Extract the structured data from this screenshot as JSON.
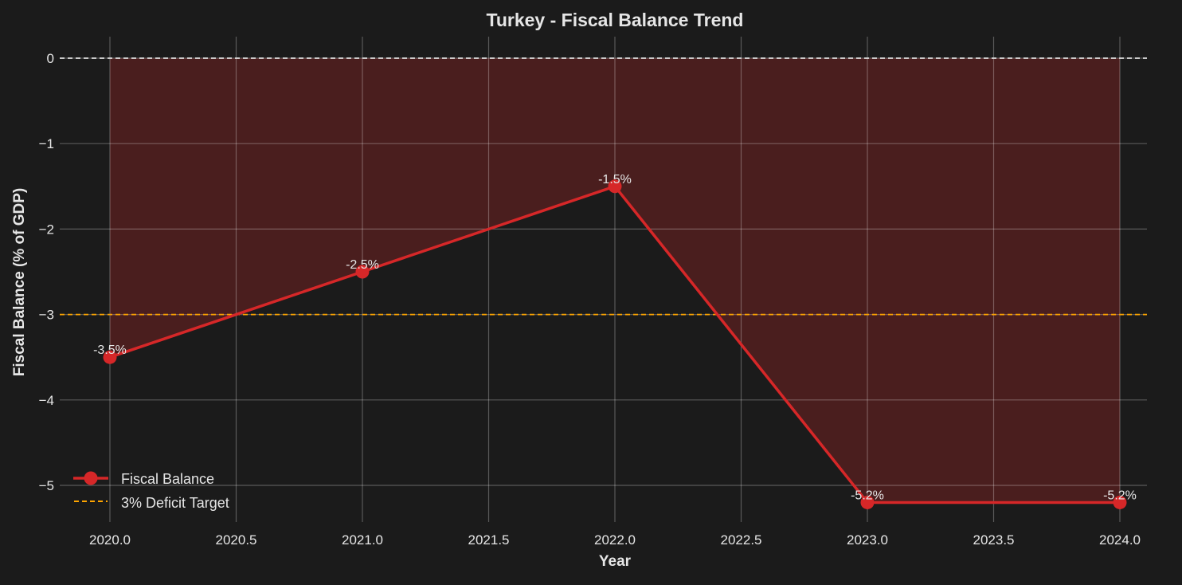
{
  "chart_data": {
    "type": "line",
    "title": "Turkey - Fiscal Balance Trend",
    "xlabel": "Year",
    "ylabel": "Fiscal Balance (% of GDP)",
    "x": [
      2020,
      2021,
      2022,
      2023,
      2024
    ],
    "series": [
      {
        "name": "Fiscal Balance",
        "values": [
          -3.5,
          -2.5,
          -1.5,
          -5.2,
          -5.2
        ],
        "color": "#d62728",
        "labels": [
          "-3.5%",
          "-2.5%",
          "-1.5%",
          "-5.2%",
          "-5.2%"
        ]
      }
    ],
    "reference_lines": [
      {
        "name": "3% Deficit Target",
        "y": -3,
        "color": "#ffa500",
        "style": "dashed"
      },
      {
        "name": "zero",
        "y": 0,
        "color": "#e0e0e0",
        "style": "dashed"
      }
    ],
    "fill_between": {
      "from": 0,
      "color": "#d62728",
      "alpha": 0.25
    },
    "xticks": [
      "2020.0",
      "2020.5",
      "2021.0",
      "2021.5",
      "2022.0",
      "2022.5",
      "2023.0",
      "2023.5",
      "2024.0"
    ],
    "yticks": [
      "0",
      "−1",
      "−2",
      "−3",
      "−4",
      "−5"
    ],
    "xlim": [
      2019.8,
      2024.1
    ],
    "ylim": [
      -5.42,
      0.26
    ],
    "grid": true,
    "legend": {
      "position": "lower left",
      "entries": [
        "Fiscal Balance",
        "3% Deficit Target"
      ]
    }
  }
}
